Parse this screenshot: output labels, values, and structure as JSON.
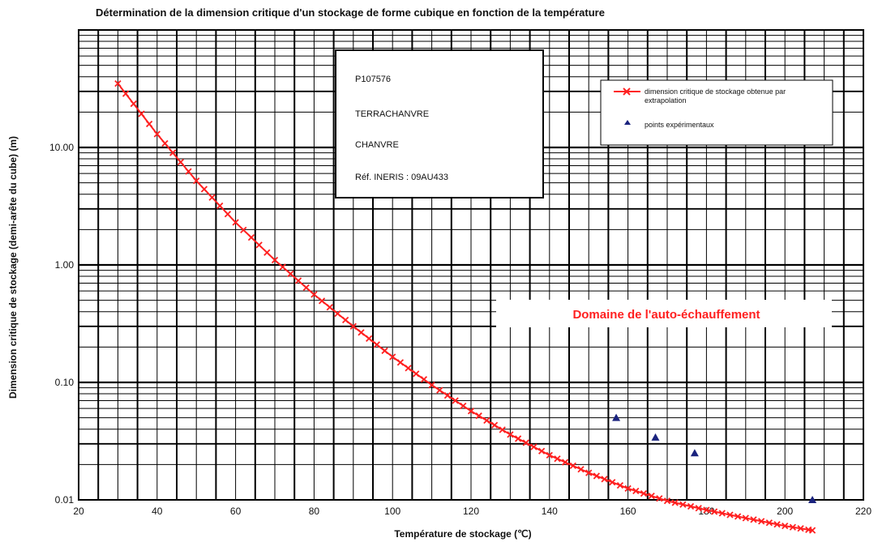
{
  "chart_data": {
    "type": "line",
    "title": "Détermination de la dimension critique d'un stockage de forme cubique en fonction de la température",
    "xlabel": "Température de stockage (℃)",
    "ylabel": "Dimension critique de stockage (demi-arête du cube) (m)",
    "xlim": [
      20,
      220
    ],
    "ylim": [
      0.01,
      100
    ],
    "y_scale": "log",
    "grid": true,
    "x_ticks": [
      "20",
      "40",
      "60",
      "80",
      "100",
      "120",
      "140",
      "160",
      "180",
      "200",
      "220"
    ],
    "y_ticks": [
      {
        "value": 0.01,
        "label": "0.01"
      },
      {
        "value": 0.1,
        "label": "0.10"
      },
      {
        "value": 1,
        "label": "1.00"
      },
      {
        "value": 10,
        "label": "10.00"
      }
    ],
    "legend_position": "top-right",
    "series": [
      {
        "name": "dimension critique de stockage obtenue par extrapolation",
        "marker": "x",
        "color": "#ff2020",
        "x_start": 30,
        "x_end": 207,
        "x_step": 2,
        "anchor_points": [
          [
            30,
            35
          ],
          [
            40,
            13
          ],
          [
            50,
            5.2
          ],
          [
            60,
            2.3
          ],
          [
            70,
            1.1
          ],
          [
            80,
            0.56
          ],
          [
            90,
            0.3
          ],
          [
            100,
            0.165
          ],
          [
            110,
            0.095
          ],
          [
            120,
            0.057
          ],
          [
            130,
            0.036
          ],
          [
            140,
            0.024
          ],
          [
            150,
            0.017
          ],
          [
            160,
            0.0125
          ],
          [
            170,
            0.0098
          ],
          [
            180,
            0.0082
          ],
          [
            190,
            0.007
          ],
          [
            200,
            0.006
          ],
          [
            207,
            0.0055
          ]
        ]
      },
      {
        "name": "points expérimentaux",
        "marker": "triangle",
        "color": "#1a237e",
        "points": [
          [
            157,
            0.05
          ],
          [
            167,
            0.034
          ],
          [
            177,
            0.025
          ],
          [
            207,
            0.01
          ]
        ]
      }
    ],
    "annotations": {
      "info_lines": [
        "P107576",
        "TERRACHANVRE",
        "CHANVRE",
        "Réf. INERIS :  09AU433"
      ],
      "domain_label": "Domaine de l'auto-échauffement",
      "domain_color": "#ff2020"
    }
  }
}
